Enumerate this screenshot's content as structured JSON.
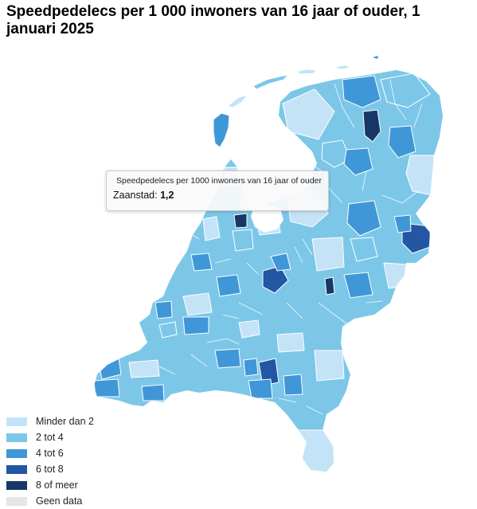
{
  "title": "Speedpedelecs per 1 000 inwoners van 16 jaar of ouder, 1 januari 2025",
  "tooltip": {
    "series": "Speedpedelecs per 1000 inwoners van 16 jaar of ouder",
    "municipality": "Zaanstad",
    "value": "1,2"
  },
  "legend": [
    {
      "label": "Minder dan 2",
      "color": "#c4e3f7"
    },
    {
      "label": "2 tot 4",
      "color": "#7cc7e8"
    },
    {
      "label": "4 tot 6",
      "color": "#3f97d8"
    },
    {
      "label": "6 tot 8",
      "color": "#2356a3"
    },
    {
      "label": "8 of meer",
      "color": "#173866"
    },
    {
      "label": "Geen data",
      "color": "#e6e6e6"
    }
  ]
}
